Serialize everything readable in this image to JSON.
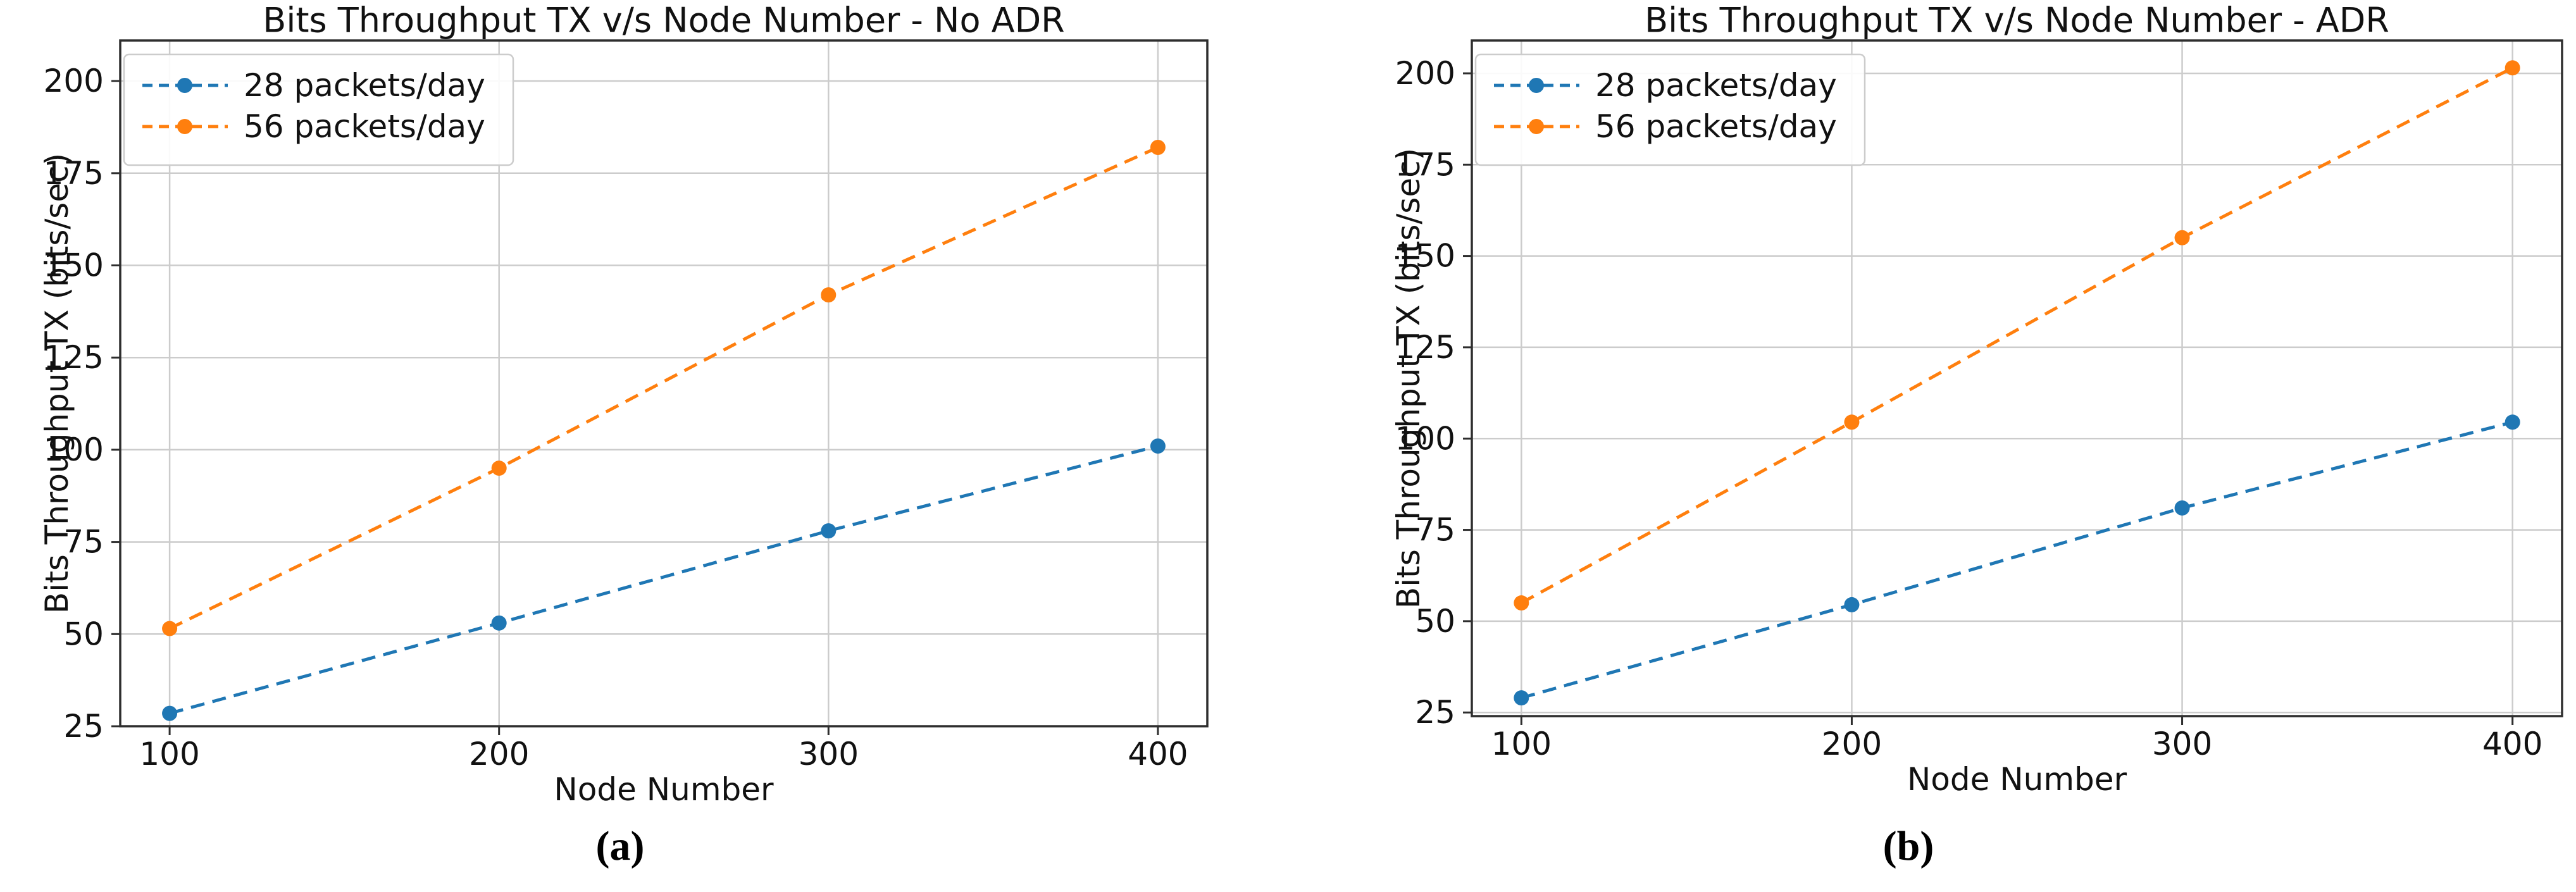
{
  "page": {
    "background": "#ffffff"
  },
  "figure": {
    "captions": [
      {
        "open": "(",
        "letter": "a",
        "close": ")"
      },
      {
        "open": "(",
        "letter": "b",
        "close": ")"
      }
    ]
  },
  "colors": {
    "grid": "#cccccc",
    "spine": "#2e2e2e",
    "text": "#111111",
    "legend_border": "#cccccc",
    "legend_fill": "#ffffff"
  },
  "chart_data": [
    {
      "type": "line",
      "title": "Bits Throughput TX v/s Node Number - No ADR",
      "xlabel": "Node Number",
      "ylabel": "Bits Throughput TX (bits/sec)",
      "x": [
        100,
        200,
        300,
        400
      ],
      "series": [
        {
          "name": "28 packets/day",
          "color": "#1f77b4",
          "linestyle": "dashed",
          "marker": "circle",
          "values": [
            28.5,
            53,
            78,
            101
          ]
        },
        {
          "name": "56 packets/day",
          "color": "#ff7f0e",
          "linestyle": "dashed",
          "marker": "circle",
          "values": [
            51.5,
            95,
            142,
            182
          ]
        }
      ],
      "xticks": [
        100,
        200,
        300,
        400
      ],
      "yticks": [
        25,
        50,
        75,
        100,
        125,
        150,
        175,
        200
      ],
      "xlim": [
        85,
        415
      ],
      "ylim": [
        25,
        211
      ],
      "grid": true,
      "legend_position": "upper-left"
    },
    {
      "type": "line",
      "title": "Bits Throughput TX v/s Node Number - ADR",
      "xlabel": "Node Number",
      "ylabel": "Bits Throughput TX (bits/sec)",
      "x": [
        100,
        200,
        300,
        400
      ],
      "series": [
        {
          "name": "28 packets/day",
          "color": "#1f77b4",
          "linestyle": "dashed",
          "marker": "circle",
          "values": [
            29,
            54.5,
            81,
            104.5
          ]
        },
        {
          "name": "56 packets/day",
          "color": "#ff7f0e",
          "linestyle": "dashed",
          "marker": "circle",
          "values": [
            55,
            104.5,
            155,
            201.5
          ]
        }
      ],
      "xticks": [
        100,
        200,
        300,
        400
      ],
      "yticks": [
        25,
        50,
        75,
        100,
        125,
        150,
        175,
        200
      ],
      "xlim": [
        85,
        415
      ],
      "ylim": [
        24,
        209
      ],
      "grid": true,
      "legend_position": "upper-left"
    }
  ]
}
